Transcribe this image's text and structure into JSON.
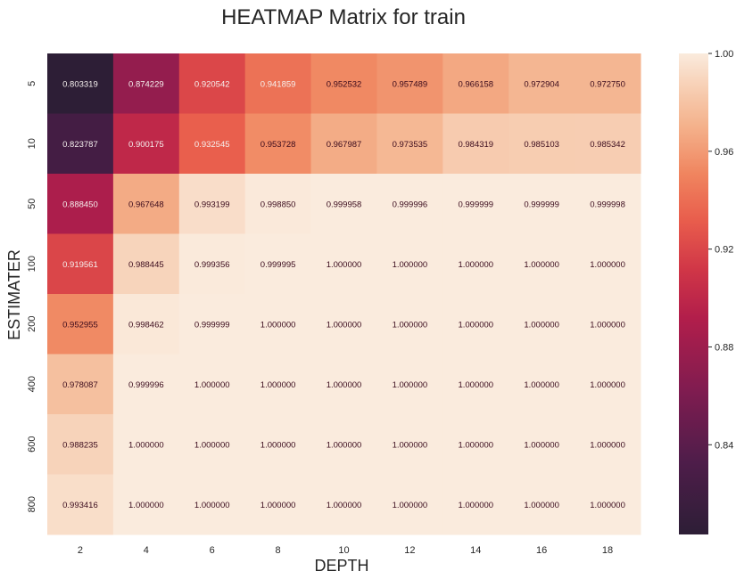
{
  "chart_data": {
    "type": "heatmap",
    "title": "HEATMAP Matrix for train",
    "xlabel": "DEPTH",
    "ylabel": "ESTIMATER",
    "x_categories": [
      "2",
      "4",
      "6",
      "8",
      "10",
      "12",
      "14",
      "16",
      "18"
    ],
    "y_categories": [
      "5",
      "10",
      "50",
      "100",
      "200",
      "400",
      "600",
      "800"
    ],
    "values": [
      [
        0.803319,
        0.874229,
        0.920542,
        0.941859,
        0.952532,
        0.957489,
        0.966158,
        0.972904,
        0.97275
      ],
      [
        0.823787,
        0.900175,
        0.932545,
        0.953728,
        0.967987,
        0.973535,
        0.984319,
        0.985103,
        0.985342
      ],
      [
        0.88845,
        0.967648,
        0.993199,
        0.99885,
        0.999958,
        0.999996,
        0.999999,
        0.999999,
        0.999998
      ],
      [
        0.919561,
        0.988445,
        0.999356,
        0.999995,
        1.0,
        1.0,
        1.0,
        1.0,
        1.0
      ],
      [
        0.952955,
        0.998462,
        0.999999,
        1.0,
        1.0,
        1.0,
        1.0,
        1.0,
        1.0
      ],
      [
        0.978087,
        0.999996,
        1.0,
        1.0,
        1.0,
        1.0,
        1.0,
        1.0,
        1.0
      ],
      [
        0.988235,
        1.0,
        1.0,
        1.0,
        1.0,
        1.0,
        1.0,
        1.0,
        1.0
      ],
      [
        0.993416,
        1.0,
        1.0,
        1.0,
        1.0,
        1.0,
        1.0,
        1.0,
        1.0
      ]
    ],
    "value_format": "6 decimals",
    "colorbar": {
      "range": [
        0.803319,
        1.0
      ],
      "ticks": [
        "0.84",
        "0.88",
        "0.92",
        "0.96",
        "1.00"
      ],
      "tick_values": [
        0.84,
        0.88,
        0.92,
        0.96,
        1.0
      ],
      "colormap": "rocket"
    },
    "grid": false
  }
}
